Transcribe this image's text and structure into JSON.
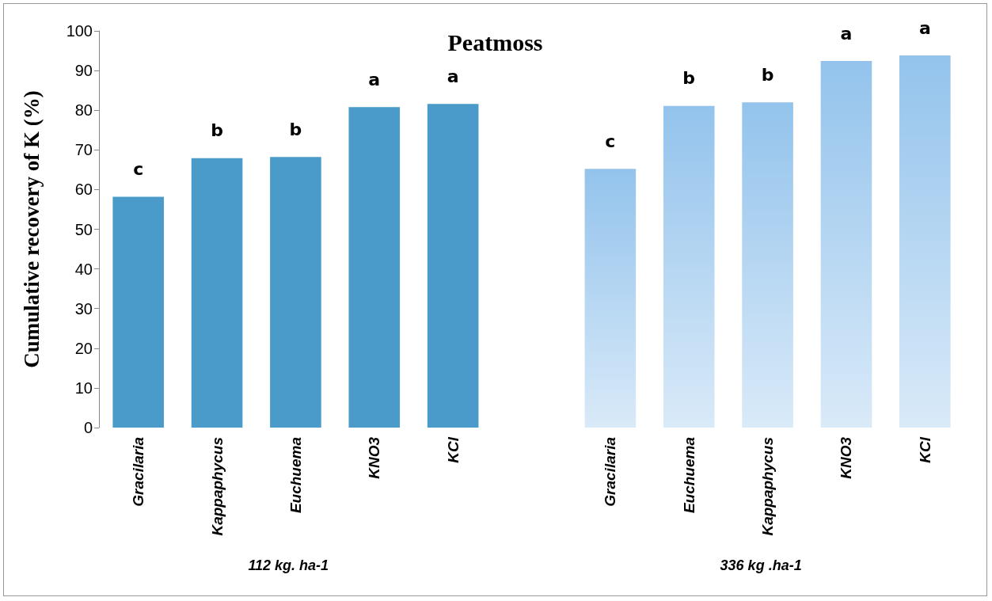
{
  "chart_data": {
    "type": "bar",
    "title": "Peatmoss",
    "ylabel": "Cumulative recovery of K (%)",
    "categories": [
      "Gracilaria",
      "Kappaphycus",
      "Euchuema",
      "KNO3",
      "KCl",
      null,
      "Gracilaria",
      "Euchuema",
      "Kappaphycus",
      "KNO3",
      "KCl"
    ],
    "values": [
      58.2,
      67.9,
      68.2,
      80.8,
      81.6,
      null,
      65.2,
      81.1,
      82.0,
      92.4,
      93.8
    ],
    "colors": [
      "#4a9bc9",
      "#4a9bc9",
      "#4a9bc9",
      "#4a9bc9",
      "#4a9bc9",
      null,
      "#93c3ec",
      "#93c3ec",
      "#93c3ec",
      "#93c3ec",
      "#93c3ec"
    ],
    "value_labels": [
      "c",
      "b",
      "b",
      "a",
      "a",
      null,
      "c",
      "b",
      "b",
      "a",
      "a"
    ],
    "annotations": [
      "112 kg. ha-1",
      "336 kg .ha-1"
    ],
    "ylim": [
      0,
      100
    ],
    "yticks": [
      0,
      10,
      20,
      30,
      40,
      50,
      60,
      70,
      80,
      90,
      100
    ]
  }
}
